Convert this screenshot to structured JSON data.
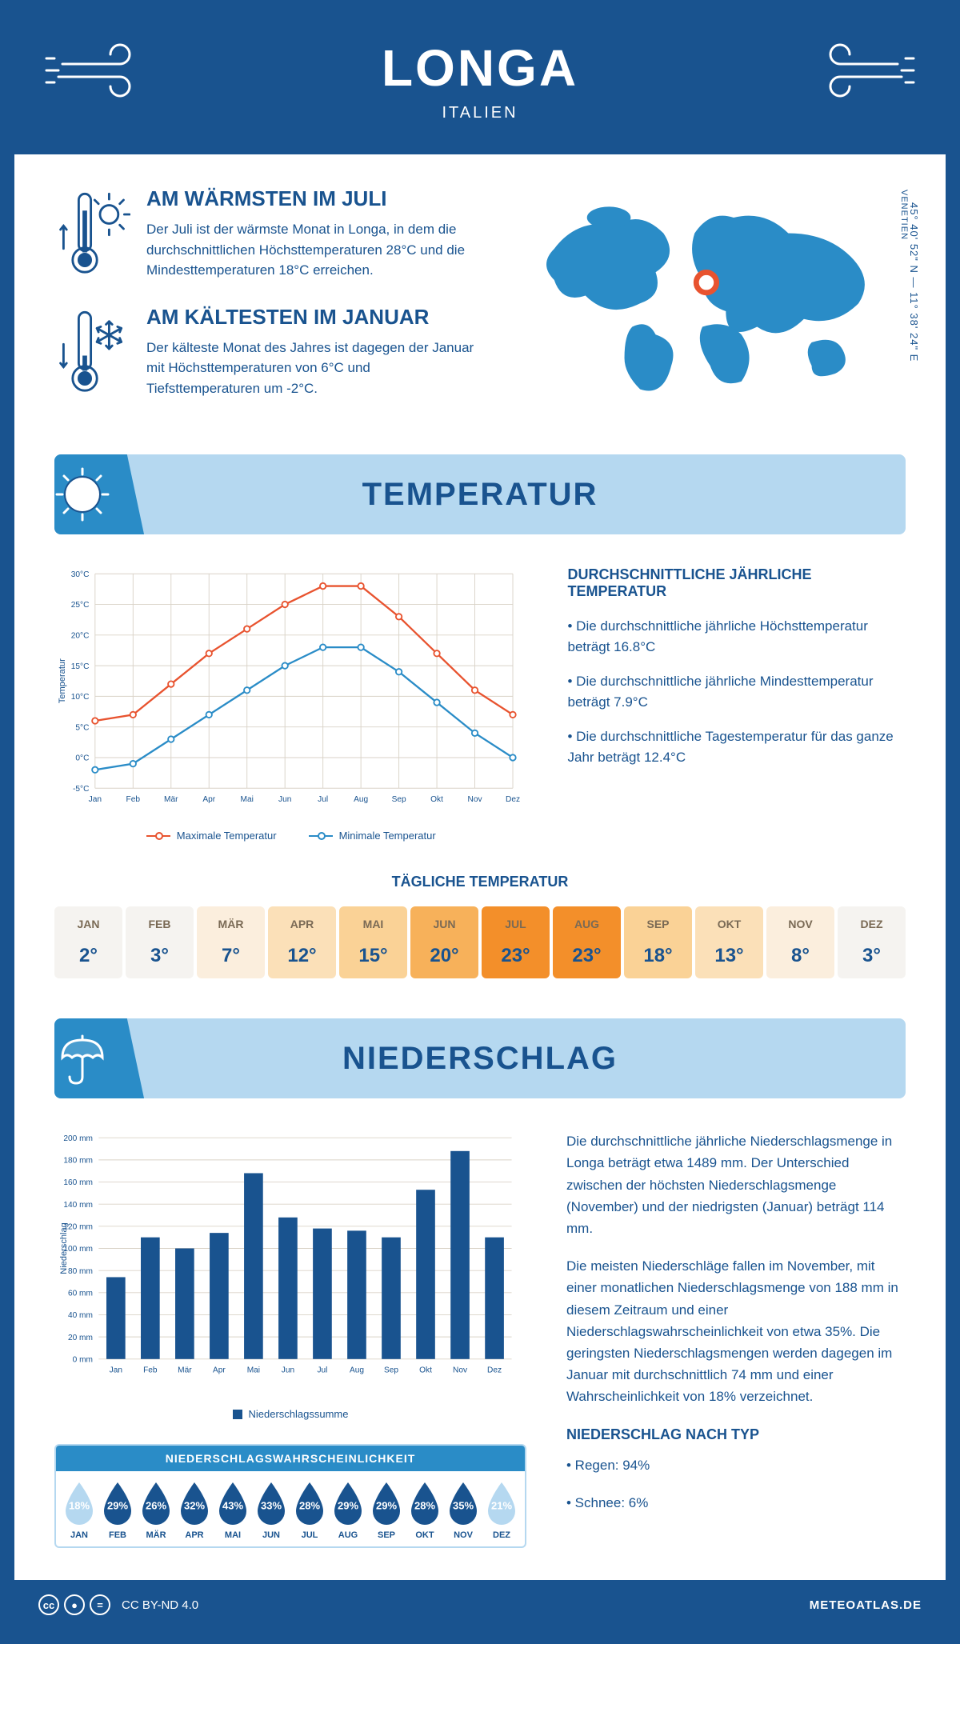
{
  "header": {
    "title": "LONGA",
    "subtitle": "ITALIEN"
  },
  "coords": "45° 40' 52\" N — 11° 38' 24\" E",
  "region": "VENETIEN",
  "map_marker": {
    "cx_pct": 49,
    "cy_pct": 44
  },
  "facts": {
    "warm": {
      "title": "AM WÄRMSTEN IM JULI",
      "text": "Der Juli ist der wärmste Monat in Longa, in dem die durchschnittlichen Höchsttemperaturen 28°C und die Mindesttemperaturen 18°C erreichen."
    },
    "cold": {
      "title": "AM KÄLTESTEN IM JANUAR",
      "text": "Der kälteste Monat des Jahres ist dagegen der Januar mit Höchsttemperaturen von 6°C und Tiefsttemperaturen um -2°C."
    }
  },
  "colors": {
    "brand": "#19538f",
    "accent": "#2a8cc7",
    "light": "#b5d8f0",
    "max_line": "#e8532f",
    "min_line": "#2a8cc7",
    "grid": "#d9d2c7"
  },
  "temp_section": {
    "title": "TEMPERATUR"
  },
  "temp_chart": {
    "type": "line",
    "months": [
      "Jan",
      "Feb",
      "Mär",
      "Apr",
      "Mai",
      "Jun",
      "Jul",
      "Aug",
      "Sep",
      "Okt",
      "Nov",
      "Dez"
    ],
    "max": [
      6,
      7,
      12,
      17,
      21,
      25,
      28,
      28,
      23,
      17,
      11,
      7
    ],
    "min": [
      -2,
      -1,
      3,
      7,
      11,
      15,
      18,
      18,
      14,
      9,
      4,
      0
    ],
    "ylabel": "Temperatur",
    "ymin": -5,
    "ymax": 30,
    "ystep": 5,
    "legend_max": "Maximale Temperatur",
    "legend_min": "Minimale Temperatur"
  },
  "temp_info": {
    "heading": "DURCHSCHNITTLICHE JÄHRLICHE TEMPERATUR",
    "b1": "• Die durchschnittliche jährliche Höchsttemperatur beträgt 16.8°C",
    "b2": "• Die durchschnittliche jährliche Mindesttemperatur beträgt 7.9°C",
    "b3": "• Die durchschnittliche Tagestemperatur für das ganze Jahr beträgt 12.4°C"
  },
  "daily": {
    "title": "TÄGLICHE TEMPERATUR",
    "months": [
      "JAN",
      "FEB",
      "MÄR",
      "APR",
      "MAI",
      "JUN",
      "JUL",
      "AUG",
      "SEP",
      "OKT",
      "NOV",
      "DEZ"
    ],
    "values": [
      "2°",
      "3°",
      "7°",
      "12°",
      "15°",
      "20°",
      "23°",
      "23°",
      "18°",
      "13°",
      "8°",
      "3°"
    ],
    "bg": [
      "#f5f3f0",
      "#f5f3f0",
      "#fbeedd",
      "#fbe0b8",
      "#fad296",
      "#f7b15a",
      "#f38f2a",
      "#f38f2a",
      "#fad296",
      "#fbe0b8",
      "#fbeedd",
      "#f5f3f0"
    ]
  },
  "precip_section": {
    "title": "NIEDERSCHLAG"
  },
  "precip_chart": {
    "type": "bar",
    "months": [
      "Jan",
      "Feb",
      "Mär",
      "Apr",
      "Mai",
      "Jun",
      "Jul",
      "Aug",
      "Sep",
      "Okt",
      "Nov",
      "Dez"
    ],
    "values": [
      74,
      110,
      100,
      114,
      168,
      128,
      118,
      116,
      110,
      153,
      188,
      110
    ],
    "ylabel": "Niederschlag",
    "ymin": 0,
    "ymax": 200,
    "ystep": 20,
    "bar_color": "#19538f",
    "legend": "Niederschlagssumme"
  },
  "precip_text": {
    "p1": "Die durchschnittliche jährliche Niederschlagsmenge in Longa beträgt etwa 1489 mm. Der Unterschied zwischen der höchsten Niederschlagsmenge (November) und der niedrigsten (Januar) beträgt 114 mm.",
    "p2": "Die meisten Niederschläge fallen im November, mit einer monatlichen Niederschlagsmenge von 188 mm in diesem Zeitraum und einer Niederschlagswahrscheinlichkeit von etwa 35%. Die geringsten Niederschlagsmengen werden dagegen im Januar mit durchschnittlich 74 mm und einer Wahrscheinlichkeit von 18% verzeichnet.",
    "type_title": "NIEDERSCHLAG NACH TYP",
    "type1": "• Regen: 94%",
    "type2": "• Schnee: 6%"
  },
  "prob": {
    "title": "NIEDERSCHLAGSWAHRSCHEINLICHKEIT",
    "months": [
      "JAN",
      "FEB",
      "MÄR",
      "APR",
      "MAI",
      "JUN",
      "JUL",
      "AUG",
      "SEP",
      "OKT",
      "NOV",
      "DEZ"
    ],
    "pct": [
      "18%",
      "29%",
      "26%",
      "32%",
      "43%",
      "33%",
      "28%",
      "29%",
      "29%",
      "28%",
      "35%",
      "21%"
    ],
    "fill": [
      "#b5d8f0",
      "#19538f",
      "#19538f",
      "#19538f",
      "#19538f",
      "#19538f",
      "#19538f",
      "#19538f",
      "#19538f",
      "#19538f",
      "#19538f",
      "#b5d8f0"
    ]
  },
  "footer": {
    "license": "CC BY-ND 4.0",
    "site": "METEOATLAS.DE"
  }
}
